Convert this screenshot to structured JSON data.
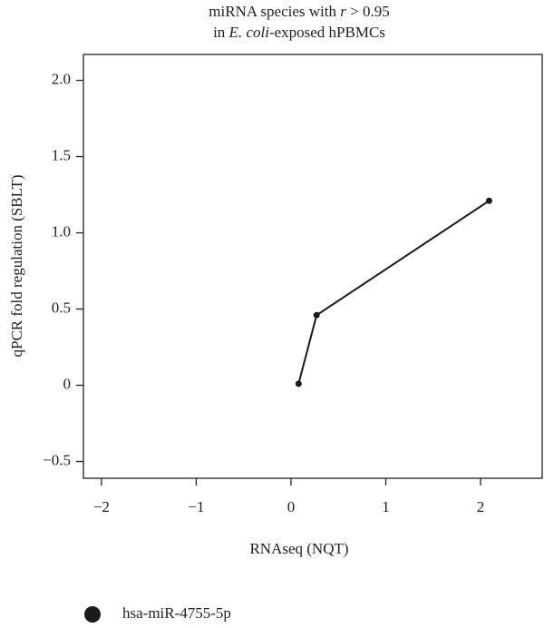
{
  "chart_data": {
    "type": "line",
    "title_lines": [
      [
        "miRNA species with ",
        "r",
        " > 0.95"
      ],
      [
        "in ",
        "E. coli",
        "-exposed hPBMCs"
      ]
    ],
    "xlabel": "RNAseq (NQT)",
    "ylabel": "qPCR fold regulation (SBLT)",
    "series": [
      {
        "name": "hsa-miR-4755-5p",
        "color": "#1a1a1a",
        "x": [
          0.08,
          0.27,
          2.09
        ],
        "values": [
          0.01,
          0.46,
          1.21
        ]
      }
    ],
    "xlim": [
      -2.19,
      2.65
    ],
    "ylim": [
      -0.61,
      2.17
    ],
    "xticks": [
      {
        "value": -2,
        "label": "−2"
      },
      {
        "value": -1,
        "label": "−1"
      },
      0,
      1,
      2
    ],
    "yticks": [
      {
        "value": -0.5,
        "label": "−0.5"
      },
      0,
      0.5,
      {
        "value": 1.0,
        "label": "1.0"
      },
      1.5,
      {
        "value": 2.0,
        "label": "2.0"
      }
    ],
    "grid": false
  }
}
